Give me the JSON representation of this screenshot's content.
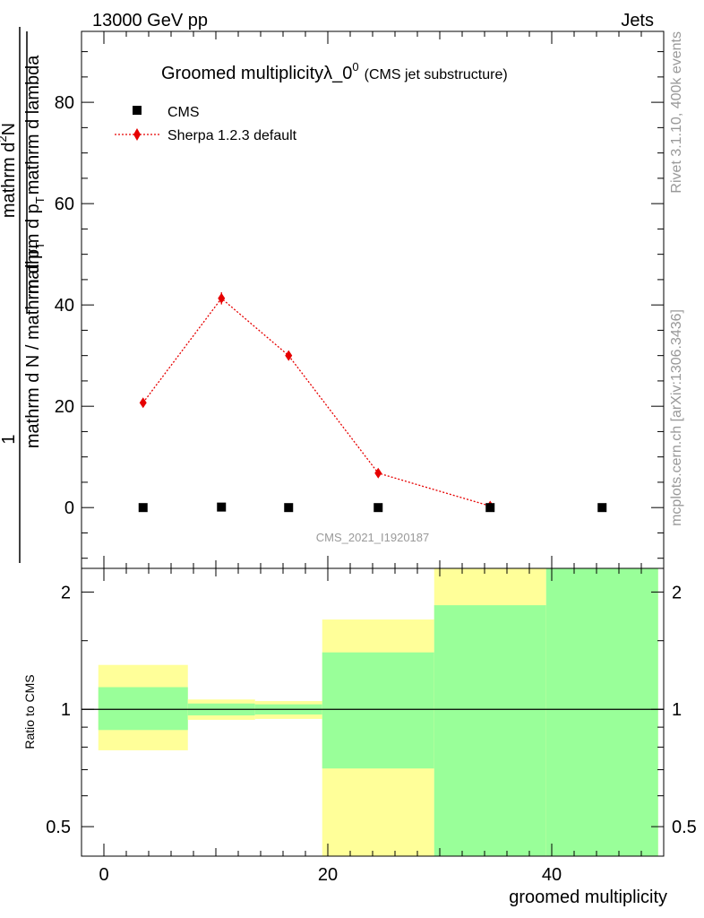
{
  "header": {
    "left": "13000 GeV pp",
    "right": "Jets"
  },
  "side_labels": {
    "rivet": "Rivet 3.1.10,  400k events",
    "mcplots": "mcplots.cern.ch [arXiv:1306.3436]"
  },
  "chart_data": [
    {
      "type": "scatter",
      "title_main": "Groomed multiplicity",
      "title_lambda": "λ_0",
      "title_sup": "0",
      "title_paren": "(CMS jet substructure)",
      "ylabel_numerator": "mathrm d²N",
      "ylabel_numerator_pre": "mathrm d",
      "ylabel_numerator_sup": "2",
      "ylabel_numerator_post": "N",
      "ylabel_denominator": "mathrm d p_T mathrm d lambda",
      "ylabel_denominator_a": "mathrm d p",
      "ylabel_denominator_sub": "T",
      "ylabel_denominator_b": "mathrm d lambda",
      "ylabel_left": "1",
      "ylabel_left_denominator": "mathrm d N / mathrm d p_T",
      "ylabel_left_den_a": "mathrm d N / mathrm d p",
      "ylabel_left_den_sub": "T",
      "watermark": "CMS_2021_I1920187",
      "xlim": [
        -2,
        50
      ],
      "ylim": [
        -12,
        94
      ],
      "yticks": [
        0,
        20,
        40,
        60,
        80
      ],
      "ytick_labels": [
        "0",
        "20",
        "40",
        "60",
        "80"
      ],
      "legend_placement": "top-left",
      "series": [
        {
          "name": "CMS",
          "color": "#000000",
          "marker": "square",
          "x": [
            3.5,
            10.5,
            16.5,
            24.5,
            34.5,
            44.5
          ],
          "y": [
            0,
            0.1,
            0,
            0,
            0,
            0
          ]
        },
        {
          "name": "Sherpa 1.2.3 default",
          "color": "#e60000",
          "marker": "diamond",
          "line": "dotted",
          "x": [
            3.5,
            10.5,
            16.5,
            24.5,
            34.5
          ],
          "y": [
            20.7,
            41.3,
            30.0,
            6.8,
            0.3
          ],
          "yerr": [
            0.6,
            1.2,
            0.9,
            0.4,
            0.1
          ]
        }
      ]
    },
    {
      "type": "bar",
      "ylabel": "Ratio to CMS",
      "xlabel": "groomed multiplicity",
      "log_y": true,
      "xlim": [
        -2,
        50
      ],
      "ylim": [
        0.42,
        2.3
      ],
      "xticks": [
        0,
        20,
        40
      ],
      "xtick_labels": [
        "0",
        "20",
        "40"
      ],
      "yticks": [
        0.5,
        1,
        2
      ],
      "ytick_labels": [
        "0.5",
        "1",
        "2"
      ],
      "reference_line": 1,
      "band_colors": {
        "inner": "#99ff99",
        "outer": "#ffff99"
      },
      "bins": [
        {
          "xlow": -0.5,
          "xhigh": 7.5,
          "inner": [
            0.885,
            1.14
          ],
          "outer": [
            0.785,
            1.3
          ]
        },
        {
          "xlow": 7.5,
          "xhigh": 13.5,
          "inner": [
            0.965,
            1.035
          ],
          "outer": [
            0.94,
            1.06
          ]
        },
        {
          "xlow": 13.5,
          "xhigh": 19.5,
          "inner": [
            0.97,
            1.03
          ],
          "outer": [
            0.945,
            1.05
          ]
        },
        {
          "xlow": 19.5,
          "xhigh": 29.5,
          "inner": [
            0.705,
            1.4
          ],
          "outer": [
            0.42,
            1.7
          ]
        },
        {
          "xlow": 29.5,
          "xhigh": 39.5,
          "inner": [
            0.42,
            1.85
          ],
          "outer": [
            0.42,
            2.3
          ]
        },
        {
          "xlow": 39.5,
          "xhigh": 49.5,
          "inner": [
            0.42,
            2.3
          ],
          "outer": [
            0.42,
            2.3
          ]
        }
      ]
    }
  ]
}
